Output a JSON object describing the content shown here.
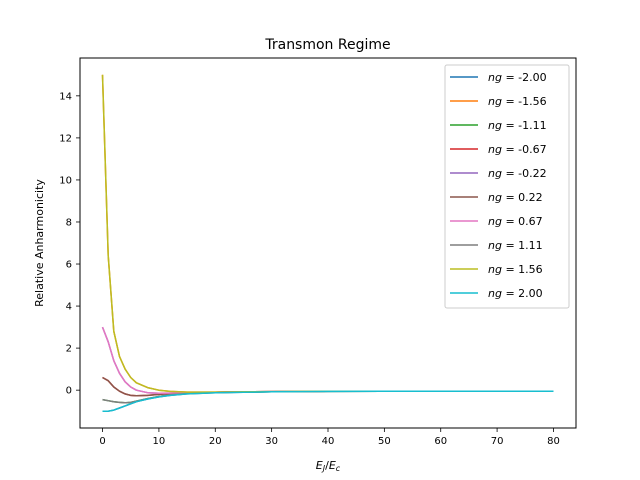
{
  "chart_data": {
    "type": "line",
    "title": "Transmon Regime",
    "xlabel_main": "E",
    "xlabel_sub1": "J",
    "xlabel_sep": "/",
    "xlabel_main2": "E",
    "xlabel_sub2": "c",
    "ylabel": "Relative Anharmonicity",
    "xlim": [
      -4,
      84
    ],
    "ylim": [
      -1.8,
      15.8
    ],
    "xticks": [
      0,
      10,
      20,
      30,
      40,
      50,
      60,
      70,
      80
    ],
    "yticks": [
      0,
      2,
      4,
      6,
      8,
      10,
      12,
      14
    ],
    "legend_location": "upper right",
    "legend_prefix": "ng",
    "series": [
      {
        "name": "ng = -2.00",
        "label_value": " = -2.00",
        "color": "#1f77b4",
        "x": [
          0,
          1,
          2,
          3,
          4,
          5,
          6,
          8,
          10,
          12,
          15,
          20,
          25,
          30,
          35,
          40,
          50,
          60,
          70,
          80
        ],
        "y": [
          -1.0,
          -1.0,
          -0.95,
          -0.85,
          -0.75,
          -0.65,
          -0.55,
          -0.42,
          -0.32,
          -0.25,
          -0.18,
          -0.12,
          -0.1,
          -0.08,
          -0.07,
          -0.06,
          -0.05,
          -0.05,
          -0.05,
          -0.05
        ]
      },
      {
        "name": "ng = -1.56",
        "label_value": " = -1.56",
        "color": "#ff7f0e",
        "x": [
          0,
          1,
          2,
          3,
          4,
          5,
          6,
          8,
          10,
          12,
          15,
          20,
          25,
          30,
          35,
          40,
          50,
          60,
          70,
          80
        ],
        "y": [
          15.0,
          6.4,
          2.8,
          1.6,
          1.0,
          0.6,
          0.35,
          0.12,
          0.0,
          -0.06,
          -0.09,
          -0.09,
          -0.08,
          -0.07,
          -0.06,
          -0.05,
          -0.05,
          -0.05,
          -0.05,
          -0.05
        ]
      },
      {
        "name": "ng = -1.11",
        "label_value": " = -1.11",
        "color": "#2ca02c",
        "x": [
          0,
          1,
          2,
          3,
          4,
          5,
          6,
          8,
          10,
          12,
          15,
          20,
          25,
          30,
          35,
          40,
          50,
          60,
          70,
          80
        ],
        "y": [
          -0.45,
          -0.5,
          -0.55,
          -0.58,
          -0.6,
          -0.58,
          -0.52,
          -0.4,
          -0.3,
          -0.22,
          -0.16,
          -0.11,
          -0.09,
          -0.08,
          -0.07,
          -0.06,
          -0.05,
          -0.05,
          -0.05,
          -0.05
        ]
      },
      {
        "name": "ng = -0.67",
        "label_value": " = -0.67",
        "color": "#d62728",
        "x": [
          0,
          1,
          2,
          3,
          4,
          5,
          6,
          8,
          10,
          12,
          15,
          20,
          25,
          30,
          35,
          40,
          50,
          60,
          70,
          80
        ],
        "y": [
          0.6,
          0.45,
          0.15,
          -0.05,
          -0.18,
          -0.25,
          -0.27,
          -0.25,
          -0.2,
          -0.16,
          -0.12,
          -0.1,
          -0.08,
          -0.07,
          -0.06,
          -0.05,
          -0.05,
          -0.05,
          -0.05,
          -0.05
        ]
      },
      {
        "name": "ng = -0.22",
        "label_value": " = -0.22",
        "color": "#9467bd",
        "x": [
          0,
          1,
          2,
          3,
          4,
          5,
          6,
          8,
          10,
          12,
          15,
          20,
          25,
          30,
          35,
          40,
          50,
          60,
          70,
          80
        ],
        "y": [
          3.0,
          2.3,
          1.4,
          0.8,
          0.4,
          0.15,
          0.0,
          -0.12,
          -0.15,
          -0.14,
          -0.12,
          -0.1,
          -0.08,
          -0.07,
          -0.06,
          -0.05,
          -0.05,
          -0.05,
          -0.05,
          -0.05
        ]
      },
      {
        "name": "ng = 0.22",
        "label_value": " = 0.22",
        "color": "#8c564b",
        "x": [
          0,
          1,
          2,
          3,
          4,
          5,
          6,
          8,
          10,
          12,
          15,
          20,
          25,
          30,
          35,
          40,
          50,
          60,
          70,
          80
        ],
        "y": [
          0.6,
          0.45,
          0.15,
          -0.05,
          -0.18,
          -0.25,
          -0.27,
          -0.25,
          -0.2,
          -0.16,
          -0.12,
          -0.1,
          -0.08,
          -0.07,
          -0.06,
          -0.05,
          -0.05,
          -0.05,
          -0.05,
          -0.05
        ]
      },
      {
        "name": "ng = 0.67",
        "label_value": " = 0.67",
        "color": "#e377c2",
        "x": [
          0,
          1,
          2,
          3,
          4,
          5,
          6,
          8,
          10,
          12,
          15,
          20,
          25,
          30,
          35,
          40,
          50,
          60,
          70,
          80
        ],
        "y": [
          3.0,
          2.3,
          1.4,
          0.8,
          0.4,
          0.15,
          0.0,
          -0.12,
          -0.15,
          -0.14,
          -0.12,
          -0.1,
          -0.08,
          -0.07,
          -0.06,
          -0.05,
          -0.05,
          -0.05,
          -0.05,
          -0.05
        ]
      },
      {
        "name": "ng = 1.11",
        "label_value": " = 1.11",
        "color": "#7f7f7f",
        "x": [
          0,
          1,
          2,
          3,
          4,
          5,
          6,
          8,
          10,
          12,
          15,
          20,
          25,
          30,
          35,
          40,
          50,
          60,
          70,
          80
        ],
        "y": [
          -0.45,
          -0.5,
          -0.55,
          -0.58,
          -0.6,
          -0.58,
          -0.52,
          -0.4,
          -0.3,
          -0.22,
          -0.16,
          -0.11,
          -0.09,
          -0.08,
          -0.07,
          -0.06,
          -0.05,
          -0.05,
          -0.05,
          -0.05
        ]
      },
      {
        "name": "ng = 1.56",
        "label_value": " = 1.56",
        "color": "#bcbd22",
        "x": [
          0,
          1,
          2,
          3,
          4,
          5,
          6,
          8,
          10,
          12,
          15,
          20,
          25,
          30,
          35,
          40,
          50,
          60,
          70,
          80
        ],
        "y": [
          15.0,
          6.4,
          2.8,
          1.6,
          1.0,
          0.6,
          0.35,
          0.12,
          0.0,
          -0.06,
          -0.09,
          -0.09,
          -0.08,
          -0.07,
          -0.06,
          -0.05,
          -0.05,
          -0.05,
          -0.05,
          -0.05
        ]
      },
      {
        "name": "ng = 2.00",
        "label_value": " = 2.00",
        "color": "#17becf",
        "x": [
          0,
          1,
          2,
          3,
          4,
          5,
          6,
          8,
          10,
          12,
          15,
          20,
          25,
          30,
          35,
          40,
          50,
          60,
          70,
          80
        ],
        "y": [
          -1.0,
          -1.0,
          -0.95,
          -0.85,
          -0.75,
          -0.65,
          -0.55,
          -0.42,
          -0.32,
          -0.25,
          -0.18,
          -0.12,
          -0.1,
          -0.08,
          -0.07,
          -0.06,
          -0.05,
          -0.05,
          -0.05,
          -0.05
        ]
      }
    ]
  }
}
